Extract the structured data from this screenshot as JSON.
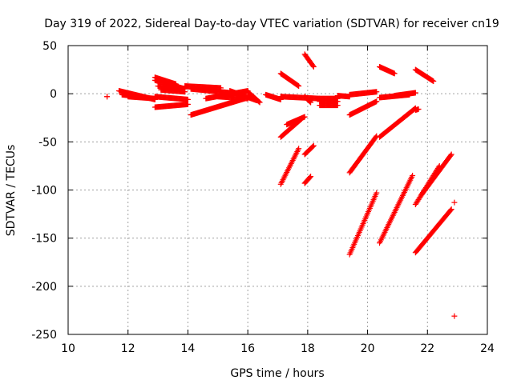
{
  "chart_data": {
    "type": "scatter",
    "title": "Day 319 of 2022, Sidereal Day-to-day VTEC variation (SDTVAR) for receiver cn19",
    "xlabel": "GPS time / hours",
    "ylabel": "SDTVAR / TECUs",
    "xlim": [
      10,
      24
    ],
    "ylim": [
      -250,
      50
    ],
    "xticks": [
      10,
      12,
      14,
      16,
      18,
      20,
      22,
      24
    ],
    "yticks": [
      50,
      0,
      -50,
      -100,
      -150,
      -200,
      -250
    ],
    "grid": true,
    "marker": "plus",
    "color": "#ff0000",
    "tracks": [
      {
        "x_start": 11.3,
        "x_end": 11.3,
        "y_start": -3,
        "y_end": -3
      },
      {
        "x_start": 11.7,
        "x_end": 12.9,
        "y_start": 3,
        "y_end": -6
      },
      {
        "x_start": 11.8,
        "x_end": 12.6,
        "y_start": -1,
        "y_end": -4
      },
      {
        "x_start": 12.0,
        "x_end": 12.9,
        "y_start": -3,
        "y_end": -5
      },
      {
        "x_start": 12.9,
        "x_end": 13.6,
        "y_start": 17,
        "y_end": 10
      },
      {
        "x_start": 12.9,
        "x_end": 13.9,
        "y_start": 14,
        "y_end": 5
      },
      {
        "x_start": 13.0,
        "x_end": 13.7,
        "y_start": 8,
        "y_end": 5
      },
      {
        "x_start": 13.1,
        "x_end": 13.9,
        "y_start": 4,
        "y_end": 2
      },
      {
        "x_start": 12.9,
        "x_end": 14.0,
        "y_start": -3,
        "y_end": -6
      },
      {
        "x_start": 12.9,
        "x_end": 14.0,
        "y_start": -14,
        "y_end": -11
      },
      {
        "x_start": 13.9,
        "x_end": 15.1,
        "y_start": 8,
        "y_end": 6
      },
      {
        "x_start": 14.1,
        "x_end": 15.4,
        "y_start": 5,
        "y_end": 1
      },
      {
        "x_start": 14.1,
        "x_end": 15.9,
        "y_start": -22,
        "y_end": -5
      },
      {
        "x_start": 14.6,
        "x_end": 16.0,
        "y_start": -5,
        "y_end": 3
      },
      {
        "x_start": 15.0,
        "x_end": 16.0,
        "y_start": -3,
        "y_end": -5
      },
      {
        "x_start": 15.4,
        "x_end": 16.3,
        "y_start": 3,
        "y_end": -7
      },
      {
        "x_start": 16.0,
        "x_end": 16.4,
        "y_start": 2,
        "y_end": -9
      },
      {
        "x_start": 16.6,
        "x_end": 17.1,
        "y_start": -1,
        "y_end": -6
      },
      {
        "x_start": 17.1,
        "x_end": 17.7,
        "y_start": 21,
        "y_end": 8
      },
      {
        "x_start": 17.1,
        "x_end": 18.4,
        "y_start": -3,
        "y_end": -5
      },
      {
        "x_start": 17.1,
        "x_end": 17.8,
        "y_start": -45,
        "y_end": -26
      },
      {
        "x_start": 17.3,
        "x_end": 17.9,
        "y_start": -32,
        "y_end": -24
      },
      {
        "x_start": 17.1,
        "x_end": 17.7,
        "y_start": -94,
        "y_end": -57
      },
      {
        "x_start": 17.9,
        "x_end": 18.2,
        "y_start": 41,
        "y_end": 28
      },
      {
        "x_start": 17.9,
        "x_end": 18.1,
        "y_start": -3,
        "y_end": -9
      },
      {
        "x_start": 17.9,
        "x_end": 18.2,
        "y_start": -63,
        "y_end": -54
      },
      {
        "x_start": 17.9,
        "x_end": 18.1,
        "y_start": -93,
        "y_end": -86
      },
      {
        "x_start": 18.4,
        "x_end": 19.0,
        "y_start": -5,
        "y_end": -5
      },
      {
        "x_start": 18.4,
        "x_end": 19.0,
        "y_start": -8,
        "y_end": -8
      },
      {
        "x_start": 18.4,
        "x_end": 19.0,
        "y_start": -12,
        "y_end": -12
      },
      {
        "x_start": 19.0,
        "x_end": 19.4,
        "y_start": -2,
        "y_end": -3
      },
      {
        "x_start": 19.4,
        "x_end": 20.3,
        "y_start": -1,
        "y_end": 2
      },
      {
        "x_start": 19.4,
        "x_end": 20.3,
        "y_start": -22,
        "y_end": -8
      },
      {
        "x_start": 19.4,
        "x_end": 20.3,
        "y_start": -82,
        "y_end": -44
      },
      {
        "x_start": 19.4,
        "x_end": 20.3,
        "y_start": -167,
        "y_end": -103
      },
      {
        "x_start": 20.4,
        "x_end": 20.9,
        "y_start": 28,
        "y_end": 21
      },
      {
        "x_start": 20.4,
        "x_end": 21.4,
        "y_start": -4,
        "y_end": -1
      },
      {
        "x_start": 20.9,
        "x_end": 21.6,
        "y_start": -2,
        "y_end": 1
      },
      {
        "x_start": 20.4,
        "x_end": 21.6,
        "y_start": -45,
        "y_end": -15
      },
      {
        "x_start": 20.4,
        "x_end": 21.5,
        "y_start": -155,
        "y_end": -85
      },
      {
        "x_start": 21.6,
        "x_end": 22.2,
        "y_start": 25,
        "y_end": 13
      },
      {
        "x_start": 21.6,
        "x_end": 21.7,
        "y_start": -17,
        "y_end": -16
      },
      {
        "x_start": 21.6,
        "x_end": 22.4,
        "y_start": -115,
        "y_end": -75
      },
      {
        "x_start": 21.8,
        "x_end": 22.8,
        "y_start": -105,
        "y_end": -63
      },
      {
        "x_start": 21.6,
        "x_end": 22.8,
        "y_start": -165,
        "y_end": -120
      }
    ],
    "points": [
      {
        "x": 22.9,
        "y": -113
      },
      {
        "x": 22.9,
        "y": -231
      }
    ]
  }
}
